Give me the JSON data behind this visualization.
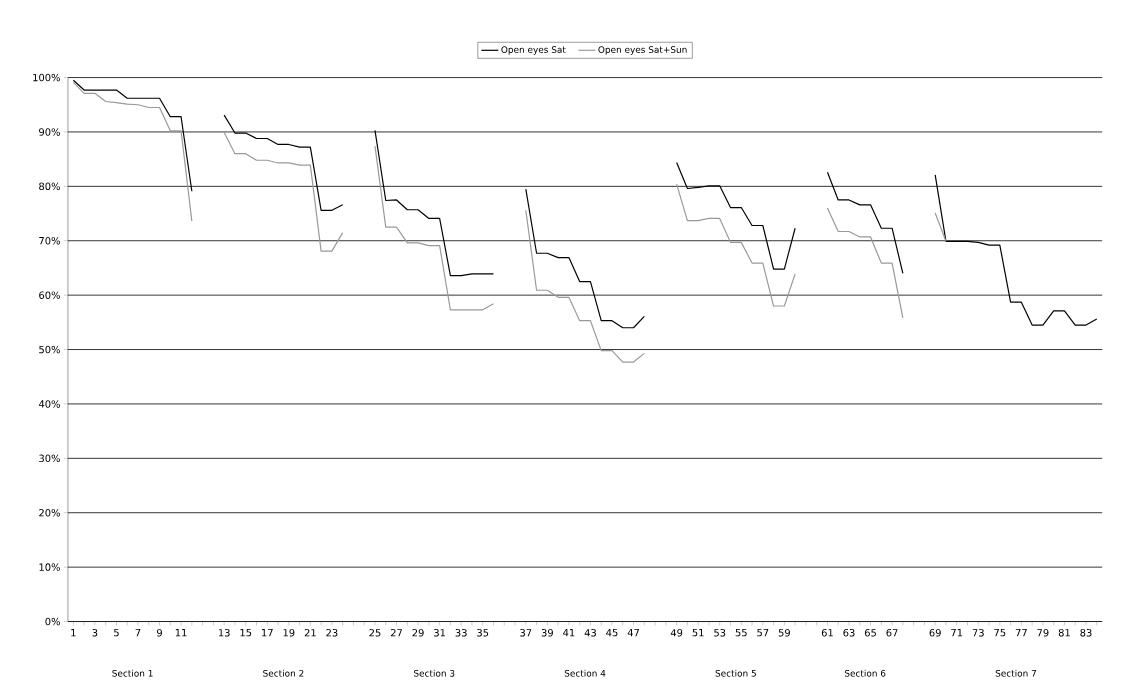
{
  "chart_data": {
    "type": "line",
    "categories": [
      "1",
      null,
      "3",
      null,
      "5",
      null,
      "7",
      null,
      "9",
      null,
      "11",
      null,
      null,
      null,
      "13",
      null,
      "15",
      null,
      "17",
      null,
      "19",
      null,
      "21",
      null,
      "23",
      null,
      null,
      null,
      "25",
      null,
      "27",
      null,
      "29",
      null,
      "31",
      null,
      "33",
      null,
      "35",
      null,
      null,
      null,
      "37",
      null,
      "39",
      null,
      "41",
      null,
      "43",
      null,
      "45",
      null,
      "47",
      null,
      null,
      null,
      "49",
      null,
      "51",
      null,
      "53",
      null,
      "55",
      null,
      "57",
      null,
      "59",
      null,
      null,
      null,
      "61",
      null,
      "63",
      null,
      "65",
      null,
      "67",
      null,
      null,
      null,
      "69",
      null,
      "71",
      null,
      "73",
      null,
      "75",
      null,
      "77",
      null,
      "79",
      null,
      "81",
      null,
      "83",
      null
    ],
    "series": [
      {
        "name": "Open eyes Sat",
        "color": "#000000",
        "values": [
          99.5,
          97.7,
          97.7,
          97.7,
          97.7,
          96.2,
          96.2,
          96.2,
          96.2,
          92.8,
          92.8,
          79.1,
          null,
          null,
          93.1,
          89.8,
          89.8,
          88.8,
          88.8,
          87.7,
          87.7,
          87.2,
          87.2,
          75.6,
          75.6,
          76.6,
          null,
          null,
          90.3,
          77.4,
          77.5,
          75.7,
          75.7,
          74.1,
          74.1,
          63.6,
          63.6,
          63.9,
          63.9,
          63.9,
          null,
          null,
          79.5,
          67.7,
          67.7,
          66.9,
          66.9,
          62.5,
          62.5,
          55.3,
          55.3,
          54.0,
          54.0,
          56.1,
          null,
          null,
          84.4,
          79.6,
          79.8,
          80.1,
          80.1,
          76.1,
          76.1,
          72.8,
          72.8,
          64.8,
          64.8,
          72.3,
          null,
          null,
          82.6,
          77.5,
          77.5,
          76.6,
          76.6,
          72.3,
          72.3,
          64.0,
          null,
          null,
          82.1,
          69.9,
          69.9,
          69.9,
          69.7,
          69.2,
          69.2,
          58.7,
          58.7,
          54.5,
          54.5,
          57.1,
          57.1,
          54.5,
          54.5,
          55.6
        ]
      },
      {
        "name": "Open eyes Sat+Sun",
        "color": "#999999",
        "values": [
          99.1,
          97.1,
          97.1,
          95.6,
          95.4,
          95.1,
          95.0,
          94.5,
          94.5,
          90.2,
          90.2,
          73.6,
          null,
          null,
          89.9,
          86.0,
          86.0,
          84.8,
          84.8,
          84.3,
          84.3,
          83.9,
          83.9,
          68.1,
          68.1,
          71.5,
          null,
          null,
          87.4,
          72.5,
          72.5,
          69.6,
          69.6,
          69.1,
          69.1,
          57.3,
          57.3,
          57.3,
          57.3,
          58.4,
          null,
          null,
          75.6,
          60.9,
          60.9,
          59.6,
          59.6,
          55.3,
          55.3,
          49.8,
          49.8,
          47.7,
          47.7,
          49.3,
          null,
          null,
          80.4,
          73.7,
          73.7,
          74.1,
          74.1,
          69.7,
          69.7,
          65.9,
          65.9,
          58.0,
          58.0,
          63.9,
          null,
          null,
          76.0,
          71.7,
          71.7,
          70.7,
          70.7,
          65.9,
          65.9,
          55.8,
          null,
          null,
          75.1,
          69.9,
          null,
          null,
          null,
          null,
          null,
          null,
          null,
          null,
          null,
          null,
          null,
          null,
          null,
          null
        ]
      }
    ],
    "ylim": [
      0,
      100
    ],
    "yticks": [
      {
        "value": 0,
        "label": "0%"
      },
      {
        "value": 10,
        "label": "10%"
      },
      {
        "value": 20,
        "label": "20%"
      },
      {
        "value": 30,
        "label": "30%"
      },
      {
        "value": 40,
        "label": "40%"
      },
      {
        "value": 50,
        "label": "50%"
      },
      {
        "value": 60,
        "label": "60%"
      },
      {
        "value": 70,
        "label": "70%"
      },
      {
        "value": 80,
        "label": "80%"
      },
      {
        "value": 90,
        "label": "90%"
      },
      {
        "value": 100,
        "label": "100%"
      }
    ],
    "grid": "y",
    "legend": "top",
    "annotations": [
      "Section 1",
      "Section 2",
      "Section 3",
      "Section 4",
      "Section 5",
      "Section 6",
      "Section 7"
    ]
  }
}
